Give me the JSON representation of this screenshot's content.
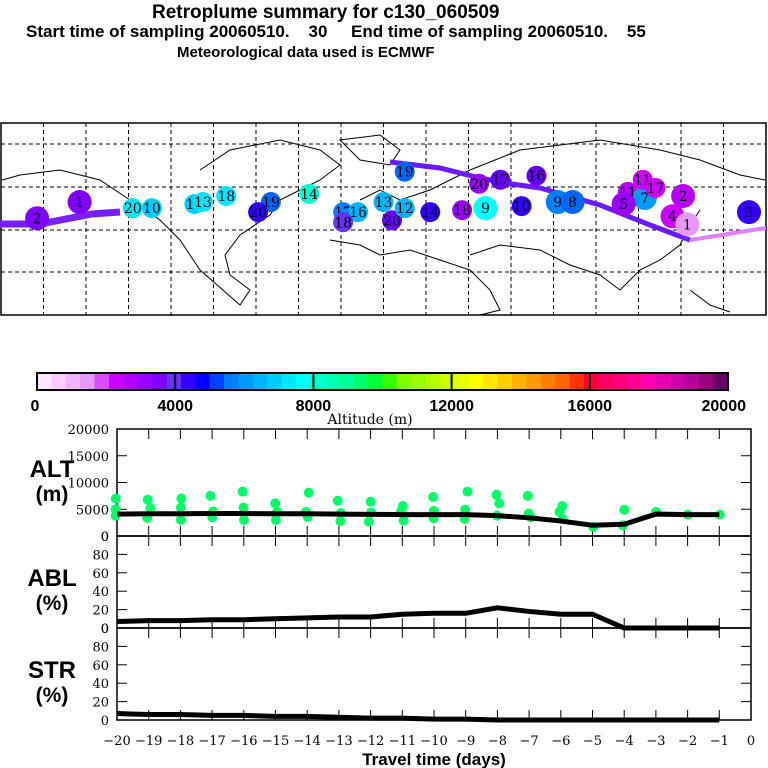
{
  "header": {
    "title": "Retroplume summary for c130_060509",
    "subtitle": "Start time of sampling 20060510.    30     End time of sampling 20060510.    55",
    "met_line": "Meteorological data used is ECMWF"
  },
  "colorbar": {
    "label": "Altitude (m)",
    "tick_labels": [
      "0",
      "4000",
      "8000",
      "12000",
      "16000",
      "20000"
    ],
    "range": [
      0,
      20000
    ],
    "colors": [
      "#ffe6ff",
      "#ffccff",
      "#f2b3ff",
      "#e699ff",
      "#d94dff",
      "#cc00ff",
      "#b300ff",
      "#9900ff",
      "#8000ff",
      "#6633ff",
      "#3300ff",
      "#0000ff",
      "#0044ff",
      "#0080ff",
      "#0099ff",
      "#00b3ff",
      "#00ccff",
      "#00e6ff",
      "#00ffff",
      "#00ffcc",
      "#00ffb3",
      "#00ff99",
      "#00ff66",
      "#00ff33",
      "#33ff00",
      "#80ff00",
      "#99ff00",
      "#b3ff00",
      "#ccff00",
      "#e6ff00",
      "#ffff00",
      "#ffe600",
      "#ffcc00",
      "#ffb300",
      "#ff9900",
      "#ff8000",
      "#ff6600",
      "#ff3300",
      "#ff0033",
      "#ff0066",
      "#ff0080",
      "#ff0099",
      "#ff00b3",
      "#e600b3",
      "#cc00aa",
      "#b30099",
      "#990080",
      "#660066"
    ]
  },
  "map": {
    "description": "World map with retroplume cluster centroids labelled by travel day",
    "clusters": [
      {
        "label": "20",
        "lon": -118,
        "lat": 48,
        "color": "#00e6ff"
      },
      {
        "label": "10",
        "lon": -109,
        "lat": 48,
        "color": "#00ccff"
      },
      {
        "label": "16",
        "lon": -89,
        "lat": 50,
        "color": "#00ccff"
      },
      {
        "label": "13",
        "lon": -85,
        "lat": 51,
        "color": "#00e6ff"
      },
      {
        "label": "18",
        "lon": -74,
        "lat": 54,
        "color": "#00e6ff"
      },
      {
        "label": "14",
        "lon": -35,
        "lat": 55,
        "color": "#00ffcc"
      },
      {
        "label": "19",
        "lon": -53,
        "lat": 51,
        "color": "#0066ff"
      },
      {
        "label": "20",
        "lon": -59,
        "lat": 46,
        "color": "#3300ff"
      },
      {
        "label": "17",
        "lon": -19,
        "lat": 46,
        "color": "#0080ff"
      },
      {
        "label": "16",
        "lon": -12,
        "lat": 46,
        "color": "#00b3ff"
      },
      {
        "label": "18",
        "lon": -19,
        "lat": 41,
        "color": "#6633ff"
      },
      {
        "label": "13",
        "lon": 0,
        "lat": 51,
        "color": "#00b3ff"
      },
      {
        "label": "20",
        "lon": 4,
        "lat": 42,
        "color": "#6600ff"
      },
      {
        "label": "12",
        "lon": 10,
        "lat": 48,
        "color": "#00b3ff"
      },
      {
        "label": "19",
        "lon": 10,
        "lat": 66,
        "color": "#0066ff"
      },
      {
        "label": "14",
        "lon": 22,
        "lat": 46,
        "color": "#3300ff"
      },
      {
        "label": "18",
        "lon": 37,
        "lat": 47,
        "color": "#9900ff"
      },
      {
        "label": "20",
        "lon": 45,
        "lat": 60,
        "color": "#9900ff"
      },
      {
        "label": "9",
        "lon": 48,
        "lat": 48,
        "color": "#00ffff"
      },
      {
        "label": "10",
        "lon": 65,
        "lat": 49,
        "color": "#3300ff"
      },
      {
        "label": "9",
        "lon": 82,
        "lat": 51,
        "color": "#0080ff"
      },
      {
        "label": "8",
        "lon": 89,
        "lat": 51,
        "color": "#0066ff"
      },
      {
        "label": "16",
        "lon": 72,
        "lat": 64,
        "color": "#6600ff"
      },
      {
        "label": "17",
        "lon": 55,
        "lat": 62,
        "color": "#6600ff"
      },
      {
        "label": "11",
        "lon": 115,
        "lat": 56,
        "color": "#b300ff"
      },
      {
        "label": "7",
        "lon": 123,
        "lat": 53,
        "color": "#0099ff"
      },
      {
        "label": "5",
        "lon": 113,
        "lat": 50,
        "color": "#9900ff"
      },
      {
        "label": "11",
        "lon": 122,
        "lat": 62,
        "color": "#cc00ff"
      },
      {
        "label": "17",
        "lon": 128,
        "lat": 58,
        "color": "#cc00ff"
      },
      {
        "label": "4",
        "lon": 136,
        "lat": 44,
        "color": "#cc00ff"
      },
      {
        "label": "1",
        "lon": 143,
        "lat": 40,
        "color": "#e699ff"
      },
      {
        "label": "2",
        "lon": 141,
        "lat": 54,
        "color": "#b300ff"
      },
      {
        "label": "3",
        "lon": 172,
        "lat": 46,
        "color": "#3300ff"
      },
      {
        "label": "1",
        "lon": -143,
        "lat": 51,
        "color": "#8000ff"
      },
      {
        "label": "2",
        "lon": -163,
        "lat": 43,
        "color": "#8000ff"
      }
    ]
  },
  "panels": {
    "alt_label": [
      "ALT",
      "(m)"
    ],
    "abl_label": [
      "ABL",
      "(%)"
    ],
    "str_label": [
      "STR",
      "(%)"
    ],
    "alt_ticks": [
      "20000",
      "15000",
      "10000",
      "5000",
      "0"
    ],
    "pct_ticks": [
      "80",
      "60",
      "40",
      "20",
      "0"
    ],
    "top_zero": "0",
    "mid_zero": "0"
  },
  "chart_data": [
    {
      "type": "line",
      "title": "ALT (m)",
      "xlabel": "Travel time (days)",
      "ylabel": "ALT (m)",
      "ylim": [
        0,
        20000
      ],
      "xlim": [
        -20,
        0
      ],
      "x": [
        -20,
        -19,
        -18,
        -17,
        -16,
        -15,
        -14,
        -13,
        -12,
        -11,
        -10,
        -9,
        -8,
        -7,
        -6,
        -5,
        -4,
        -3,
        -2,
        -1
      ],
      "series": [
        {
          "name": "mean altitude",
          "values": [
            4100,
            4150,
            4150,
            4200,
            4200,
            4150,
            4150,
            4100,
            4050,
            4000,
            4000,
            4000,
            3800,
            3400,
            2800,
            2000,
            2200,
            4100,
            4000,
            4000
          ]
        }
      ],
      "scatter": {
        "name": "cluster altitudes",
        "color": "#00ff66",
        "points": [
          [
            -20,
            7000
          ],
          [
            -20,
            5000
          ],
          [
            -20,
            3800
          ],
          [
            -19,
            6800
          ],
          [
            -19,
            5200
          ],
          [
            -19,
            3400
          ],
          [
            -18,
            7000
          ],
          [
            -18,
            5300
          ],
          [
            -18,
            3000
          ],
          [
            -17,
            7500
          ],
          [
            -17,
            4600
          ],
          [
            -17,
            3500
          ],
          [
            -16,
            8300
          ],
          [
            -16,
            5300
          ],
          [
            -16,
            3000
          ],
          [
            -15,
            6100
          ],
          [
            -15,
            4500
          ],
          [
            -15,
            3000
          ],
          [
            -14,
            8100
          ],
          [
            -14,
            4500
          ],
          [
            -14,
            3600
          ],
          [
            -13,
            6600
          ],
          [
            -13,
            4300
          ],
          [
            -13,
            2800
          ],
          [
            -12,
            6400
          ],
          [
            -12,
            4400
          ],
          [
            -12,
            2700
          ],
          [
            -11,
            5600
          ],
          [
            -11,
            4500
          ],
          [
            -11,
            2900
          ],
          [
            -10,
            7300
          ],
          [
            -10,
            4700
          ],
          [
            -10,
            3300
          ],
          [
            -9,
            8300
          ],
          [
            -9,
            4900
          ],
          [
            -9,
            3200
          ],
          [
            -8,
            7700
          ],
          [
            -8,
            6100
          ],
          [
            -8,
            3800
          ],
          [
            -7,
            7500
          ],
          [
            -7,
            4200
          ],
          [
            -7,
            3500
          ],
          [
            -6,
            5600
          ],
          [
            -6,
            3200
          ],
          [
            -6,
            4500
          ],
          [
            -5,
            1700
          ],
          [
            -4,
            4900
          ],
          [
            -4,
            2000
          ],
          [
            -3,
            4500
          ],
          [
            -2,
            4000
          ],
          [
            -1,
            4000
          ]
        ]
      },
      "yticks": [
        0,
        5000,
        10000,
        15000,
        20000
      ]
    },
    {
      "type": "line",
      "title": "ABL (%)",
      "ylabel": "ABL (%)",
      "ylim": [
        0,
        100
      ],
      "xlim": [
        -20,
        0
      ],
      "x": [
        -20,
        -19,
        -18,
        -17,
        -16,
        -15,
        -14,
        -13,
        -12,
        -11,
        -10,
        -9,
        -8,
        -7,
        -6,
        -5,
        -4,
        -3,
        -2,
        -1
      ],
      "series": [
        {
          "name": "ABL fraction",
          "values": [
            7,
            8,
            8,
            9,
            9,
            10,
            11,
            12,
            12,
            15,
            16,
            16,
            22,
            18,
            15,
            15,
            0,
            0,
            0,
            0
          ]
        }
      ],
      "yticks": [
        0,
        20,
        40,
        60,
        80
      ]
    },
    {
      "type": "line",
      "title": "STR (%)",
      "xlabel": "Travel time (days)",
      "ylabel": "STR (%)",
      "ylim": [
        0,
        100
      ],
      "xlim": [
        -20,
        0
      ],
      "x": [
        -20,
        -19,
        -18,
        -17,
        -16,
        -15,
        -14,
        -13,
        -12,
        -11,
        -10,
        -9,
        -8,
        -7,
        -6,
        -5,
        -4,
        -3,
        -2,
        -1
      ],
      "series": [
        {
          "name": "stratospheric fraction",
          "values": [
            7,
            6,
            6,
            5,
            5,
            4,
            4,
            3,
            2,
            2,
            1,
            1,
            0,
            0,
            0,
            0,
            0,
            0,
            0,
            0
          ]
        }
      ],
      "xticks": [
        -20,
        -19,
        -18,
        -17,
        -16,
        -15,
        -14,
        -13,
        -12,
        -11,
        -10,
        -9,
        -8,
        -7,
        -6,
        -5,
        -4,
        -3,
        -2,
        -1,
        0
      ],
      "xtick_labels": [
        "−20",
        "−19",
        "−18",
        "−17",
        "−16",
        "−15",
        "−14",
        "−13",
        "−12",
        "−11",
        "−10",
        "−9",
        "−8",
        "−7",
        "−6",
        "−5",
        "−4",
        "−3",
        "−2",
        "−1",
        "0"
      ],
      "yticks": [
        0,
        20,
        40,
        60,
        80
      ]
    }
  ]
}
